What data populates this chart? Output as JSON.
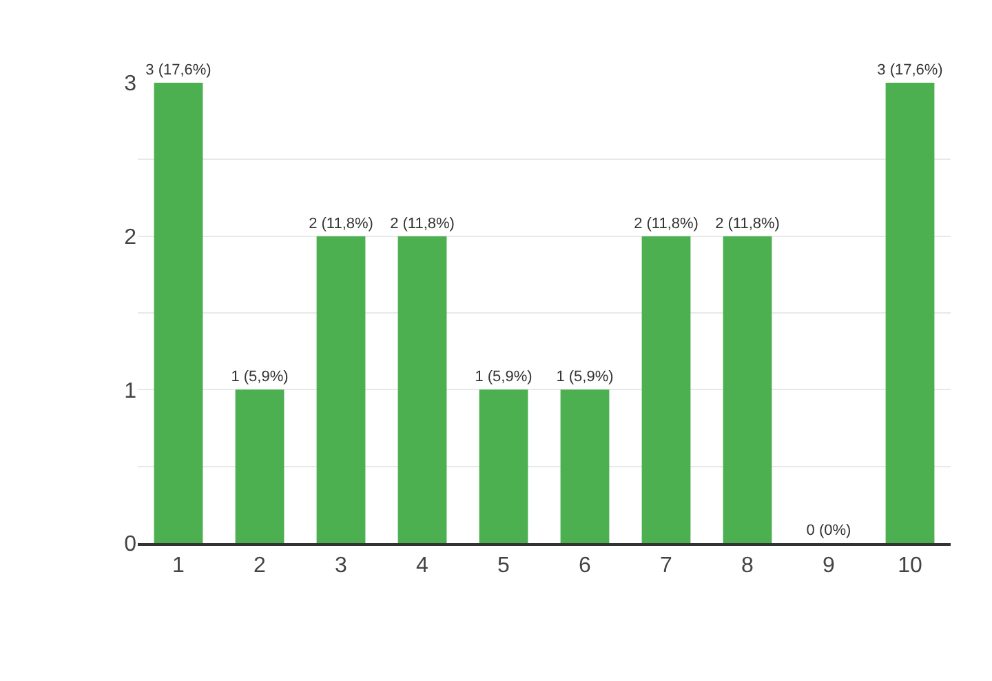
{
  "chart_data": {
    "type": "bar",
    "categories": [
      "1",
      "2",
      "3",
      "4",
      "5",
      "6",
      "7",
      "8",
      "9",
      "10"
    ],
    "values": [
      3,
      1,
      2,
      2,
      1,
      1,
      2,
      2,
      0,
      3
    ],
    "value_labels": [
      "3 (17,6%)",
      "1 (5,9%)",
      "2 (11,8%)",
      "2 (11,8%)",
      "1 (5,9%)",
      "1 (5,9%)",
      "2 (11,8%)",
      "2 (11,8%)",
      "0 (0%)",
      "3 (17,6%)"
    ],
    "color": "#4caf50",
    "ylim": [
      0,
      3
    ],
    "yticks": [
      0,
      {
        "value": 0.5,
        "label": null
      },
      1,
      {
        "value": 1.5,
        "label": null
      },
      2,
      {
        "value": 2.5,
        "label": null
      },
      3
    ],
    "grid": "y",
    "legend": false
  }
}
